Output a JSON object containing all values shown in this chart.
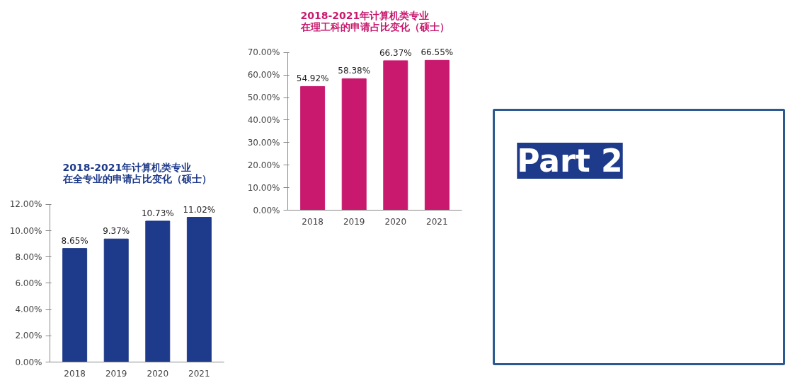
{
  "chart_data": [
    {
      "type": "bar",
      "title": "2018-2021年计算机类专业在全专业的申请占比变化（硕士）",
      "categories": [
        "2018",
        "2019",
        "2020",
        "2021"
      ],
      "values": [
        8.65,
        9.37,
        10.73,
        11.02
      ],
      "color": "#1e3a8a",
      "value_labels": [
        "8.65%",
        "9.37%",
        "10.73%",
        "11.02%"
      ],
      "ylim": [
        0,
        12
      ],
      "yticks": [
        {
          "value": 0,
          "label": "0.00%"
        },
        {
          "value": 2,
          "label": "2.00%"
        },
        {
          "value": 4,
          "label": "4.00%"
        },
        {
          "value": 6,
          "label": "6.00%"
        },
        {
          "value": 8,
          "label": "8.00%"
        },
        {
          "value": 10,
          "label": "10.00%"
        },
        {
          "value": 12,
          "label": "12.00%"
        }
      ]
    },
    {
      "type": "bar",
      "title": "2018-2021年计算机类专业在理工科的申请占比变化（硕士）",
      "categories": [
        "2018",
        "2019",
        "2020",
        "2021"
      ],
      "values": [
        54.92,
        58.38,
        66.37,
        66.55
      ],
      "color": "#c8196e",
      "value_labels": [
        "54.92%",
        "58.38%",
        "66.37%",
        "66.55%"
      ],
      "ylim": [
        0,
        70
      ],
      "yticks": [
        {
          "value": 0,
          "label": "0.00%"
        },
        {
          "value": 10,
          "label": "10.00%"
        },
        {
          "value": 20,
          "label": "20.00%"
        },
        {
          "value": 30,
          "label": "30.00%"
        },
        {
          "value": 40,
          "label": "40.00%"
        },
        {
          "value": 50,
          "label": "50.00%"
        },
        {
          "value": 60,
          "label": "60.00%"
        },
        {
          "value": 70,
          "label": "70.00%"
        }
      ]
    },
    {
      "type": "other",
      "title": "Part 2"
    }
  ]
}
